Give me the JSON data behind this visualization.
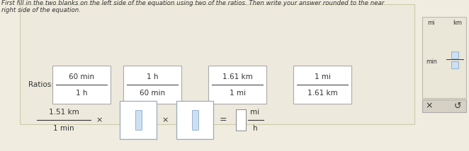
{
  "bg_color": "#f0ece0",
  "main_panel_bg": "#ede9dc",
  "main_panel_border": "#ccccaa",
  "text_color": "#333333",
  "header_line1": "First fill in the two blanks on the left side of the equation using two of the ratios. Then write your answer rounded to the near",
  "header_line2": "right side of the equation.",
  "ratios_label": "Ratios:",
  "ratio_boxes": [
    {
      "num": "60 min",
      "den": "1 h"
    },
    {
      "num": "1 h",
      "den": "60 min"
    },
    {
      "num": "1.61 km",
      "den": "1 mi"
    },
    {
      "num": "1 mi",
      "den": "1.61 km"
    }
  ],
  "equation_start_num": "1.51 km",
  "equation_start_den": "1 min",
  "result_num": "mi",
  "result_den": "h",
  "side_top_bg": "#eae6d8",
  "side_top_border": "#bbbbaa",
  "side_bot_bg": "#d5d1c5",
  "side_bot_border": "#aaaaaa",
  "side_label_top_left": "mi",
  "side_label_top_right": "km",
  "side_label_mid": "min",
  "empty_box_border": "#99aabb",
  "empty_box_fill": "#ffffff",
  "inner_sq_border": "#88aacc",
  "inner_sq_fill": "#cce0f0",
  "bottom_x": "×",
  "bottom_undo": "↺",
  "ratio_box_bg": "#ffffff",
  "ratio_box_border": "#aaaaaa"
}
